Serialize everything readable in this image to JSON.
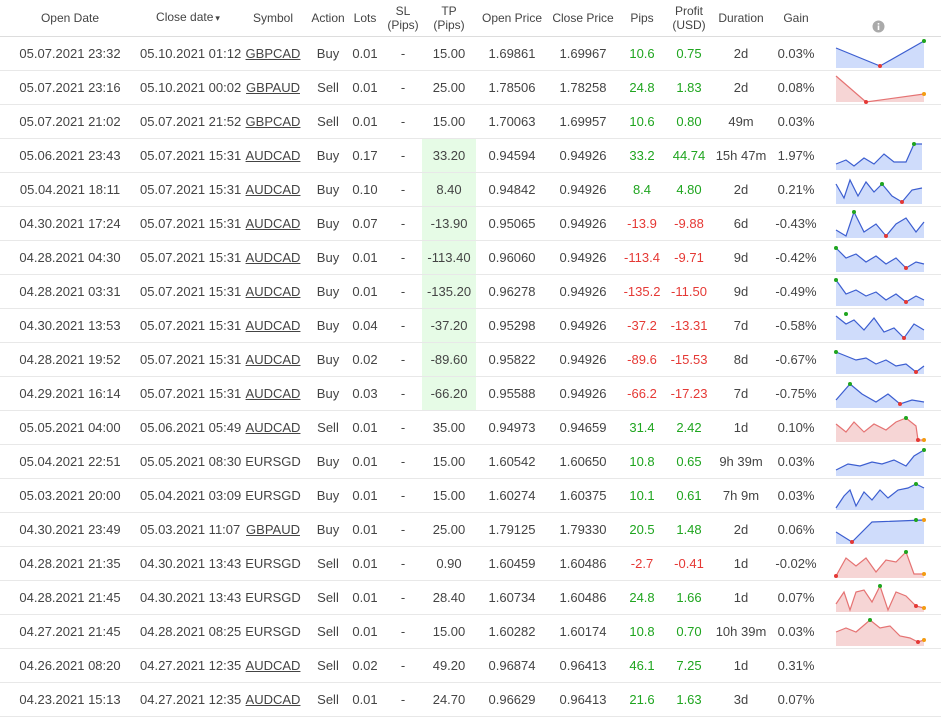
{
  "header": [
    "Open Date",
    "Close date",
    "Symbol",
    "Action",
    "Lots",
    "SL (Pips)",
    "TP (Pips)",
    "Open Price",
    "Close Price",
    "Pips",
    "Profit (USD)",
    "Duration",
    "Gain"
  ],
  "rows": [
    [
      "05.07.2021 23:32",
      "05.10.2021 01:12",
      "GBPCAD",
      "Buy",
      "0.01",
      "-",
      "15.00",
      "1.69861",
      "1.69967",
      "10.6",
      "0.75",
      "2d",
      "0.03%"
    ],
    [
      "05.07.2021 23:16",
      "05.10.2021 00:02",
      "GBPAUD",
      "Sell",
      "0.01",
      "-",
      "25.00",
      "1.78506",
      "1.78258",
      "24.8",
      "1.83",
      "2d",
      "0.08%"
    ],
    [
      "05.07.2021 21:02",
      "05.07.2021 21:52",
      "GBPCAD",
      "Sell",
      "0.01",
      "-",
      "15.00",
      "1.70063",
      "1.69957",
      "10.6",
      "0.80",
      "49m",
      "0.03%"
    ],
    [
      "05.06.2021 23:43",
      "05.07.2021 15:31",
      "AUDCAD",
      "Buy",
      "0.17",
      "-",
      "33.20",
      "0.94594",
      "0.94926",
      "33.2",
      "44.74",
      "15h 47m",
      "1.97%"
    ],
    [
      "05.04.2021 18:11",
      "05.07.2021 15:31",
      "AUDCAD",
      "Buy",
      "0.10",
      "-",
      "8.40",
      "0.94842",
      "0.94926",
      "8.4",
      "4.80",
      "2d",
      "0.21%"
    ],
    [
      "04.30.2021 17:24",
      "05.07.2021 15:31",
      "AUDCAD",
      "Buy",
      "0.07",
      "-",
      "-13.90",
      "0.95065",
      "0.94926",
      "-13.9",
      "-9.88",
      "6d",
      "-0.43%"
    ],
    [
      "04.28.2021 04:30",
      "05.07.2021 15:31",
      "AUDCAD",
      "Buy",
      "0.01",
      "-",
      "-113.40",
      "0.96060",
      "0.94926",
      "-113.4",
      "-9.71",
      "9d",
      "-0.42%"
    ],
    [
      "04.28.2021 03:31",
      "05.07.2021 15:31",
      "AUDCAD",
      "Buy",
      "0.01",
      "-",
      "-135.20",
      "0.96278",
      "0.94926",
      "-135.2",
      "-11.50",
      "9d",
      "-0.49%"
    ],
    [
      "04.30.2021 13:53",
      "05.07.2021 15:31",
      "AUDCAD",
      "Buy",
      "0.04",
      "-",
      "-37.20",
      "0.95298",
      "0.94926",
      "-37.2",
      "-13.31",
      "7d",
      "-0.58%"
    ],
    [
      "04.28.2021 19:52",
      "05.07.2021 15:31",
      "AUDCAD",
      "Buy",
      "0.02",
      "-",
      "-89.60",
      "0.95822",
      "0.94926",
      "-89.6",
      "-15.53",
      "8d",
      "-0.67%"
    ],
    [
      "04.29.2021 16:14",
      "05.07.2021 15:31",
      "AUDCAD",
      "Buy",
      "0.03",
      "-",
      "-66.20",
      "0.95588",
      "0.94926",
      "-66.2",
      "-17.23",
      "7d",
      "-0.75%"
    ],
    [
      "05.05.2021 04:00",
      "05.06.2021 05:49",
      "AUDCAD",
      "Sell",
      "0.01",
      "-",
      "35.00",
      "0.94973",
      "0.94659",
      "31.4",
      "2.42",
      "1d",
      "0.10%"
    ],
    [
      "05.04.2021 22:51",
      "05.05.2021 08:30",
      "EURSGD",
      "Buy",
      "0.01",
      "-",
      "15.00",
      "1.60542",
      "1.60650",
      "10.8",
      "0.65",
      "9h 39m",
      "0.03%"
    ],
    [
      "05.03.2021 20:00",
      "05.04.2021 03:09",
      "EURSGD",
      "Buy",
      "0.01",
      "-",
      "15.00",
      "1.60274",
      "1.60375",
      "10.1",
      "0.61",
      "7h 9m",
      "0.03%"
    ],
    [
      "04.30.2021 23:49",
      "05.03.2021 11:07",
      "GBPAUD",
      "Buy",
      "0.01",
      "-",
      "25.00",
      "1.79125",
      "1.79330",
      "20.5",
      "1.48",
      "2d",
      "0.06%"
    ],
    [
      "04.28.2021 21:35",
      "04.30.2021 13:43",
      "EURSGD",
      "Sell",
      "0.01",
      "-",
      "0.90",
      "1.60459",
      "1.60486",
      "-2.7",
      "-0.41",
      "1d",
      "-0.02%"
    ],
    [
      "04.28.2021 21:45",
      "04.30.2021 13:43",
      "EURSGD",
      "Sell",
      "0.01",
      "-",
      "28.40",
      "1.60734",
      "1.60486",
      "24.8",
      "1.66",
      "1d",
      "0.07%"
    ],
    [
      "04.27.2021 21:45",
      "04.28.2021 08:25",
      "EURSGD",
      "Sell",
      "0.01",
      "-",
      "15.00",
      "1.60282",
      "1.60174",
      "10.8",
      "0.70",
      "10h 39m",
      "0.03%"
    ],
    [
      "04.26.2021 08:20",
      "04.27.2021 12:35",
      "AUDCAD",
      "Sell",
      "0.02",
      "-",
      "49.20",
      "0.96874",
      "0.96413",
      "46.1",
      "7.25",
      "1d",
      "0.31%"
    ],
    [
      "04.23.2021 15:13",
      "04.27.2021 12:35",
      "AUDCAD",
      "Sell",
      "0.01",
      "-",
      "24.70",
      "0.96629",
      "0.96413",
      "21.6",
      "1.63",
      "3d",
      "0.07%"
    ]
  ],
  "symbol_underlined": [
    true,
    true,
    true,
    true,
    true,
    true,
    true,
    true,
    true,
    true,
    true,
    true,
    false,
    false,
    true,
    false,
    false,
    false,
    true,
    true
  ],
  "tp_highlighted": [
    false,
    false,
    false,
    true,
    true,
    true,
    true,
    true,
    true,
    true,
    true,
    false,
    false,
    false,
    false,
    false,
    false,
    false,
    false,
    false
  ]
}
